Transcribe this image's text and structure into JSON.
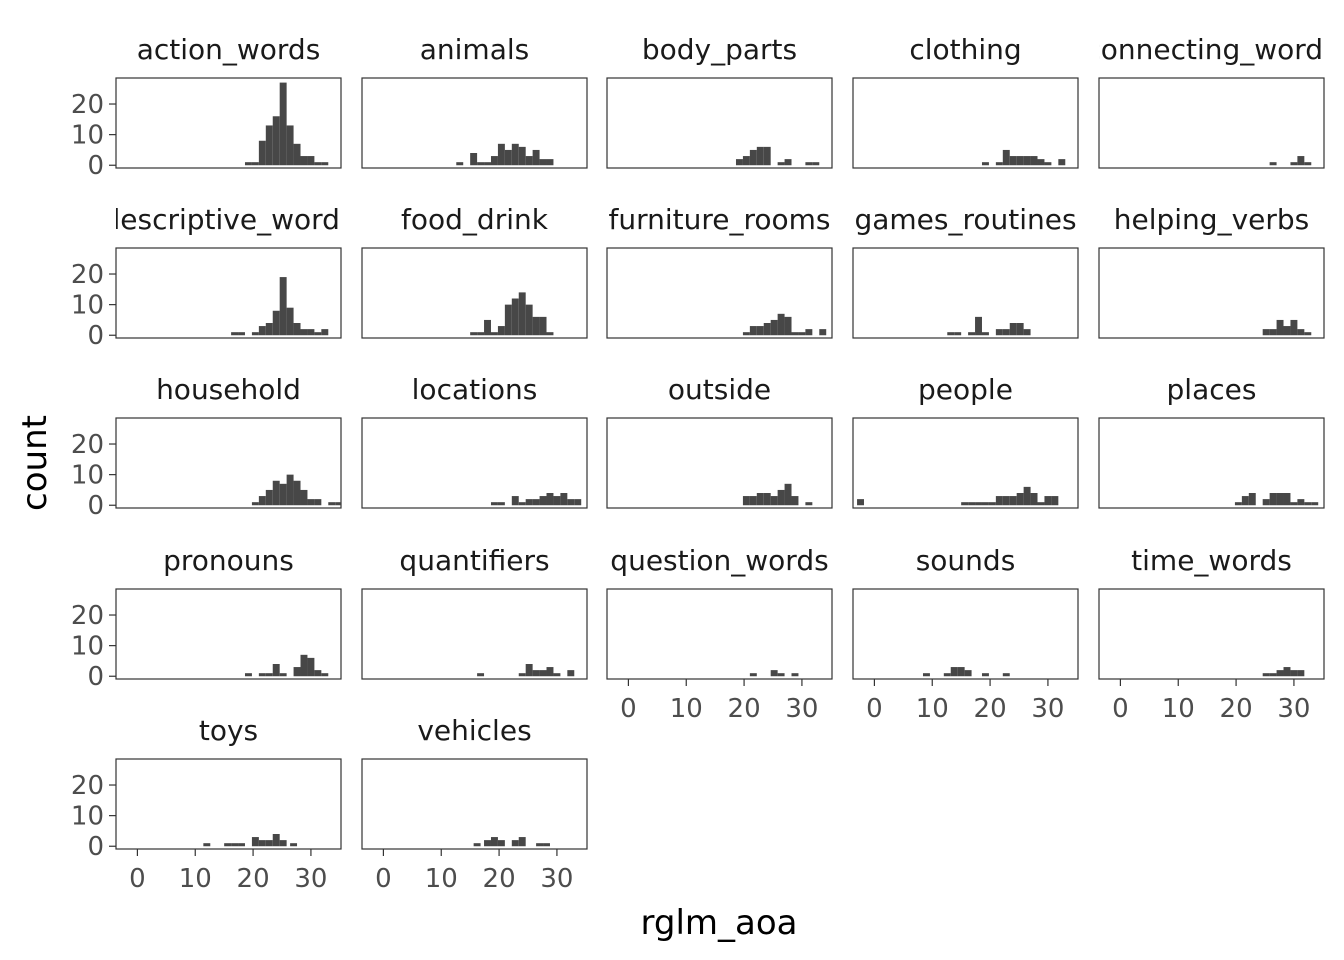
{
  "chart_data": {
    "type": "bar",
    "subtype": "faceted-histogram",
    "xlabel": "rglm_aoa",
    "ylabel": "count",
    "xlim": [
      -3.7,
      35.2
    ],
    "ylim": [
      -0.9,
      28.5
    ],
    "x_ticks": [
      0,
      10,
      20,
      30
    ],
    "y_ticks": [
      0,
      10,
      20
    ],
    "bin_width": 1.2,
    "bar_color": "#474747",
    "background": "#ffffff",
    "grid": false,
    "facets": [
      {
        "title": "action_words",
        "bins": [
          [
            18.6,
            1
          ],
          [
            19.8,
            1
          ],
          [
            21.0,
            8
          ],
          [
            22.2,
            13
          ],
          [
            23.4,
            16
          ],
          [
            24.6,
            27
          ],
          [
            25.8,
            13
          ],
          [
            27.0,
            7
          ],
          [
            28.2,
            3
          ],
          [
            29.4,
            3
          ],
          [
            30.6,
            1
          ],
          [
            31.8,
            1
          ]
        ]
      },
      {
        "title": "animals",
        "bins": [
          [
            12.6,
            1
          ],
          [
            15.0,
            4
          ],
          [
            16.2,
            1
          ],
          [
            17.4,
            1
          ],
          [
            18.6,
            3
          ],
          [
            19.8,
            7
          ],
          [
            21.0,
            5
          ],
          [
            22.2,
            7
          ],
          [
            23.4,
            6
          ],
          [
            24.6,
            3
          ],
          [
            25.8,
            5
          ],
          [
            27.0,
            2
          ],
          [
            28.2,
            2
          ]
        ]
      },
      {
        "title": "body_parts",
        "bins": [
          [
            18.6,
            2
          ],
          [
            19.8,
            3
          ],
          [
            21.0,
            5
          ],
          [
            22.2,
            6
          ],
          [
            23.4,
            6
          ],
          [
            25.8,
            1
          ],
          [
            27.0,
            2
          ],
          [
            30.6,
            1
          ],
          [
            31.8,
            1
          ]
        ]
      },
      {
        "title": "clothing",
        "bins": [
          [
            18.6,
            1
          ],
          [
            21.0,
            1
          ],
          [
            22.2,
            5
          ],
          [
            23.4,
            3
          ],
          [
            24.6,
            3
          ],
          [
            25.8,
            3
          ],
          [
            27.0,
            3
          ],
          [
            28.2,
            2
          ],
          [
            29.4,
            1
          ],
          [
            31.8,
            2
          ]
        ]
      },
      {
        "title": "connecting_words",
        "bins": [
          [
            25.8,
            1
          ],
          [
            29.4,
            1
          ],
          [
            30.6,
            3
          ],
          [
            31.8,
            1
          ]
        ]
      },
      {
        "title": "descriptive_words",
        "bins": [
          [
            16.2,
            1
          ],
          [
            17.4,
            1
          ],
          [
            19.8,
            1
          ],
          [
            21.0,
            3
          ],
          [
            22.2,
            4
          ],
          [
            23.4,
            8
          ],
          [
            24.6,
            19
          ],
          [
            25.8,
            9
          ],
          [
            27.0,
            4
          ],
          [
            28.2,
            2
          ],
          [
            29.4,
            2
          ],
          [
            30.6,
            1
          ],
          [
            31.8,
            2
          ]
        ]
      },
      {
        "title": "food_drink",
        "bins": [
          [
            15.0,
            1
          ],
          [
            16.2,
            1
          ],
          [
            17.4,
            5
          ],
          [
            18.6,
            1
          ],
          [
            19.8,
            3
          ],
          [
            21.0,
            10
          ],
          [
            22.2,
            12
          ],
          [
            23.4,
            14
          ],
          [
            24.6,
            10
          ],
          [
            25.8,
            6
          ],
          [
            27.0,
            6
          ],
          [
            28.2,
            1
          ]
        ]
      },
      {
        "title": "furniture_rooms",
        "bins": [
          [
            19.8,
            1
          ],
          [
            21.0,
            3
          ],
          [
            22.2,
            3
          ],
          [
            23.4,
            4
          ],
          [
            24.6,
            5
          ],
          [
            25.8,
            7
          ],
          [
            27.0,
            6
          ],
          [
            28.2,
            1
          ],
          [
            29.4,
            1
          ],
          [
            30.6,
            2
          ],
          [
            33.0,
            2
          ]
        ]
      },
      {
        "title": "games_routines",
        "bins": [
          [
            12.6,
            1
          ],
          [
            13.8,
            1
          ],
          [
            16.2,
            1
          ],
          [
            17.4,
            6
          ],
          [
            18.6,
            1
          ],
          [
            21.0,
            2
          ],
          [
            22.2,
            2
          ],
          [
            23.4,
            4
          ],
          [
            24.6,
            4
          ],
          [
            25.8,
            2
          ]
        ]
      },
      {
        "title": "helping_verbs",
        "bins": [
          [
            24.6,
            2
          ],
          [
            25.8,
            2
          ],
          [
            27.0,
            5
          ],
          [
            28.2,
            3
          ],
          [
            29.4,
            5
          ],
          [
            30.6,
            2
          ],
          [
            31.8,
            1
          ]
        ]
      },
      {
        "title": "household",
        "bins": [
          [
            19.8,
            1
          ],
          [
            21.0,
            3
          ],
          [
            22.2,
            5
          ],
          [
            23.4,
            8
          ],
          [
            24.6,
            7
          ],
          [
            25.8,
            10
          ],
          [
            27.0,
            8
          ],
          [
            28.2,
            5
          ],
          [
            29.4,
            2
          ],
          [
            30.6,
            2
          ],
          [
            33.0,
            1
          ],
          [
            34.2,
            1
          ]
        ]
      },
      {
        "title": "locations",
        "bins": [
          [
            18.6,
            1
          ],
          [
            19.8,
            1
          ],
          [
            22.2,
            3
          ],
          [
            23.4,
            1
          ],
          [
            24.6,
            2
          ],
          [
            25.8,
            2
          ],
          [
            27.0,
            3
          ],
          [
            28.2,
            4
          ],
          [
            29.4,
            3
          ],
          [
            30.6,
            4
          ],
          [
            31.8,
            2
          ],
          [
            33.0,
            2
          ]
        ]
      },
      {
        "title": "outside",
        "bins": [
          [
            19.8,
            3
          ],
          [
            21.0,
            3
          ],
          [
            22.2,
            4
          ],
          [
            23.4,
            4
          ],
          [
            24.6,
            3
          ],
          [
            25.8,
            5
          ],
          [
            27.0,
            7
          ],
          [
            28.2,
            3
          ],
          [
            30.6,
            1
          ]
        ]
      },
      {
        "title": "people",
        "bins": [
          [
            -3.0,
            2
          ],
          [
            15.0,
            1
          ],
          [
            16.2,
            1
          ],
          [
            17.4,
            1
          ],
          [
            18.6,
            1
          ],
          [
            19.8,
            1
          ],
          [
            21.0,
            3
          ],
          [
            22.2,
            3
          ],
          [
            23.4,
            3
          ],
          [
            24.6,
            4
          ],
          [
            25.8,
            6
          ],
          [
            27.0,
            4
          ],
          [
            28.2,
            1
          ],
          [
            29.4,
            3
          ],
          [
            30.6,
            3
          ]
        ]
      },
      {
        "title": "places",
        "bins": [
          [
            19.8,
            1
          ],
          [
            21.0,
            3
          ],
          [
            22.2,
            4
          ],
          [
            24.6,
            2
          ],
          [
            25.8,
            4
          ],
          [
            27.0,
            4
          ],
          [
            28.2,
            4
          ],
          [
            29.4,
            1
          ],
          [
            30.6,
            2
          ],
          [
            31.8,
            1
          ],
          [
            33.0,
            1
          ]
        ]
      },
      {
        "title": "pronouns",
        "bins": [
          [
            18.6,
            1
          ],
          [
            21.0,
            1
          ],
          [
            22.2,
            1
          ],
          [
            23.4,
            4
          ],
          [
            24.6,
            1
          ],
          [
            27.0,
            3
          ],
          [
            28.2,
            7
          ],
          [
            29.4,
            6
          ],
          [
            30.6,
            2
          ],
          [
            31.8,
            1
          ]
        ]
      },
      {
        "title": "quantifiers",
        "bins": [
          [
            16.2,
            1
          ],
          [
            23.4,
            1
          ],
          [
            24.6,
            4
          ],
          [
            25.8,
            2
          ],
          [
            27.0,
            2
          ],
          [
            28.2,
            3
          ],
          [
            29.4,
            1
          ],
          [
            31.8,
            2
          ]
        ]
      },
      {
        "title": "question_words",
        "bins": [
          [
            21.0,
            1
          ],
          [
            24.6,
            2
          ],
          [
            25.8,
            1
          ],
          [
            28.2,
            1
          ]
        ]
      },
      {
        "title": "sounds",
        "bins": [
          [
            8.4,
            1
          ],
          [
            12.0,
            1
          ],
          [
            13.2,
            3
          ],
          [
            14.4,
            3
          ],
          [
            15.6,
            2
          ],
          [
            18.6,
            1
          ],
          [
            22.2,
            1
          ]
        ]
      },
      {
        "title": "time_words",
        "bins": [
          [
            24.6,
            1
          ],
          [
            25.8,
            1
          ],
          [
            27.0,
            2
          ],
          [
            28.2,
            3
          ],
          [
            29.4,
            2
          ],
          [
            30.6,
            2
          ]
        ]
      },
      {
        "title": "toys",
        "bins": [
          [
            11.4,
            1
          ],
          [
            15.0,
            1
          ],
          [
            16.2,
            1
          ],
          [
            17.4,
            1
          ],
          [
            19.8,
            3
          ],
          [
            21.0,
            2
          ],
          [
            22.2,
            2
          ],
          [
            23.4,
            4
          ],
          [
            24.6,
            2
          ],
          [
            26.4,
            1
          ]
        ]
      },
      {
        "title": "vehicles",
        "bins": [
          [
            15.6,
            1
          ],
          [
            17.4,
            2
          ],
          [
            18.6,
            3
          ],
          [
            19.8,
            2
          ],
          [
            22.2,
            2
          ],
          [
            23.4,
            3
          ],
          [
            26.4,
            1
          ],
          [
            27.6,
            1
          ]
        ]
      }
    ]
  }
}
